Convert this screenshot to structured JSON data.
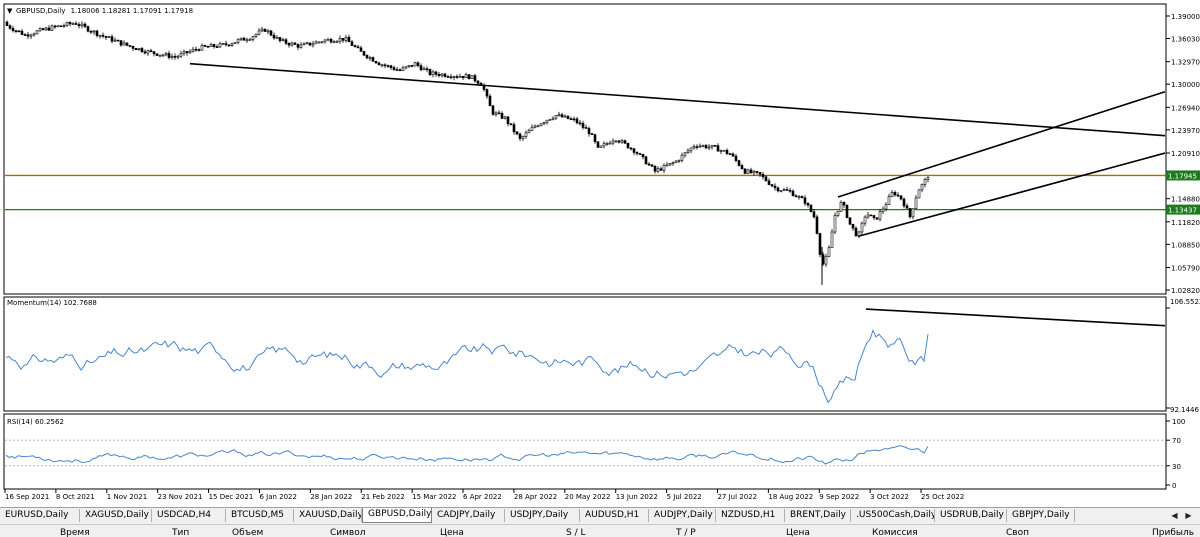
{
  "symbol_title": "GBPUSD,Daily",
  "ohlc": "1.18006 1.18281 1.17091 1.17918",
  "colors": {
    "line_orange": "#b36b00",
    "line_green": "#1a7f1a",
    "badge_green": "#1f7a1f",
    "indicator": "#4a86c8",
    "trend": "#000000"
  },
  "chart_data": [
    {
      "type": "candlestick",
      "title": "GBPUSD,Daily",
      "y_ticks": [
        "1.39000",
        "1.36030",
        "1.32970",
        "1.30000",
        "1.26940",
        "1.23970",
        "1.20910",
        "1.17945",
        "1.14880",
        "1.13437",
        "1.11820",
        "1.08850",
        "1.05790",
        "1.02820"
      ],
      "ylim": [
        1.0282,
        1.39
      ],
      "price_labels": [
        {
          "label": "1.17945",
          "value": 1.17945,
          "color": "orange"
        },
        {
          "label": "1.13437",
          "value": 1.13437,
          "color": "green"
        }
      ],
      "close_path": [
        [
          0,
          1.382
        ],
        [
          25,
          1.365
        ],
        [
          50,
          1.374
        ],
        [
          75,
          1.381
        ],
        [
          100,
          1.365
        ],
        [
          125,
          1.352
        ],
        [
          150,
          1.342
        ],
        [
          175,
          1.336
        ],
        [
          200,
          1.348
        ],
        [
          225,
          1.352
        ],
        [
          250,
          1.362
        ],
        [
          265,
          1.372
        ],
        [
          280,
          1.357
        ],
        [
          300,
          1.35
        ],
        [
          325,
          1.358
        ],
        [
          345,
          1.36
        ],
        [
          360,
          1.343
        ],
        [
          380,
          1.327
        ],
        [
          400,
          1.318
        ],
        [
          415,
          1.327
        ],
        [
          430,
          1.314
        ],
        [
          450,
          1.312
        ],
        [
          470,
          1.31
        ],
        [
          482,
          1.3
        ],
        [
          492,
          1.263
        ],
        [
          505,
          1.255
        ],
        [
          520,
          1.227
        ],
        [
          535,
          1.245
        ],
        [
          555,
          1.259
        ],
        [
          575,
          1.252
        ],
        [
          590,
          1.236
        ],
        [
          598,
          1.214
        ],
        [
          615,
          1.229
        ],
        [
          635,
          1.212
        ],
        [
          655,
          1.185
        ],
        [
          675,
          1.197
        ],
        [
          695,
          1.22
        ],
        [
          715,
          1.216
        ],
        [
          730,
          1.208
        ],
        [
          745,
          1.185
        ],
        [
          760,
          1.18
        ],
        [
          775,
          1.163
        ],
        [
          790,
          1.158
        ],
        [
          805,
          1.145
        ],
        [
          815,
          1.123
        ],
        [
          822,
          1.06
        ],
        [
          828,
          1.075
        ],
        [
          835,
          1.127
        ],
        [
          842,
          1.145
        ],
        [
          850,
          1.115
        ],
        [
          858,
          1.098
        ],
        [
          866,
          1.13
        ],
        [
          875,
          1.12
        ],
        [
          885,
          1.14
        ],
        [
          893,
          1.158
        ],
        [
          902,
          1.148
        ],
        [
          910,
          1.125
        ],
        [
          918,
          1.16
        ],
        [
          924,
          1.17
        ],
        [
          928,
          1.179
        ]
      ],
      "trendlines": [
        {
          "from": [
            190,
            1.327
          ],
          "to": [
            1165,
            1.232
          ]
        },
        {
          "from": [
            838,
            1.151
          ],
          "to": [
            1165,
            1.29
          ]
        },
        {
          "from": [
            858,
            1.099
          ],
          "to": [
            1165,
            1.209
          ]
        }
      ],
      "x_tick_labels": [
        "16 Sep 2021",
        "8 Oct 2021",
        "1 Nov 2021",
        "23 Nov 2021",
        "15 Dec 2021",
        "6 Jan 2022",
        "28 Jan 2022",
        "21 Feb 2022",
        "15 Mar 2022",
        "6 Apr 2022",
        "28 Apr 2022",
        "20 May 2022",
        "13 Jun 2022",
        "5 Jul 2022",
        "27 Jul 2022",
        "18 Aug 2022",
        "9 Sep 2022",
        "3 Oct 2022",
        "25 Oct 2022"
      ]
    },
    {
      "type": "line",
      "title": "Momentum(14) 102.7688",
      "y_ticks": [
        "106.5522",
        "92.1446"
      ],
      "ylim": [
        92.1446,
        106.5522
      ],
      "last_value": 102.7688,
      "trendline": {
        "from": [
          866,
          106.4
        ],
        "to": [
          1165,
          104.0
        ]
      }
    },
    {
      "type": "line",
      "title": "RSI(14) 60.2562",
      "y_ticks": [
        "100",
        "70",
        "30",
        "0"
      ],
      "ylim": [
        0,
        100
      ],
      "levels": [
        70,
        30
      ],
      "last_value": 60.2562
    }
  ],
  "tabs": [
    {
      "label": "EURUSD,Daily",
      "active": false
    },
    {
      "label": "XAGUSD,Daily",
      "active": false
    },
    {
      "label": "USDCAD,H4",
      "active": false
    },
    {
      "label": "BTCUSD,M5",
      "active": false
    },
    {
      "label": "XAUUSD,Daily",
      "active": false
    },
    {
      "label": "GBPUSD,Daily",
      "active": true
    },
    {
      "label": "CADJPY,Daily",
      "active": false
    },
    {
      "label": "USDJPY,Daily",
      "active": false
    },
    {
      "label": "AUDUSD,H1",
      "active": false
    },
    {
      "label": "AUDJPY,Daily",
      "active": false
    },
    {
      "label": "NZDUSD,H1",
      "active": false
    },
    {
      "label": "BRENT,Daily",
      "active": false
    },
    {
      "label": ".US500Cash,Daily",
      "active": false
    },
    {
      "label": "USDRUB,Daily",
      "active": false
    },
    {
      "label": "GBPJPY,Daily",
      "active": false
    }
  ],
  "bottom_columns": [
    "Время",
    "Тип",
    "Объем",
    "Символ",
    "Цена",
    "S / L",
    "T / P",
    "Цена",
    "Комиссия",
    "Своп",
    "Прибыль"
  ]
}
